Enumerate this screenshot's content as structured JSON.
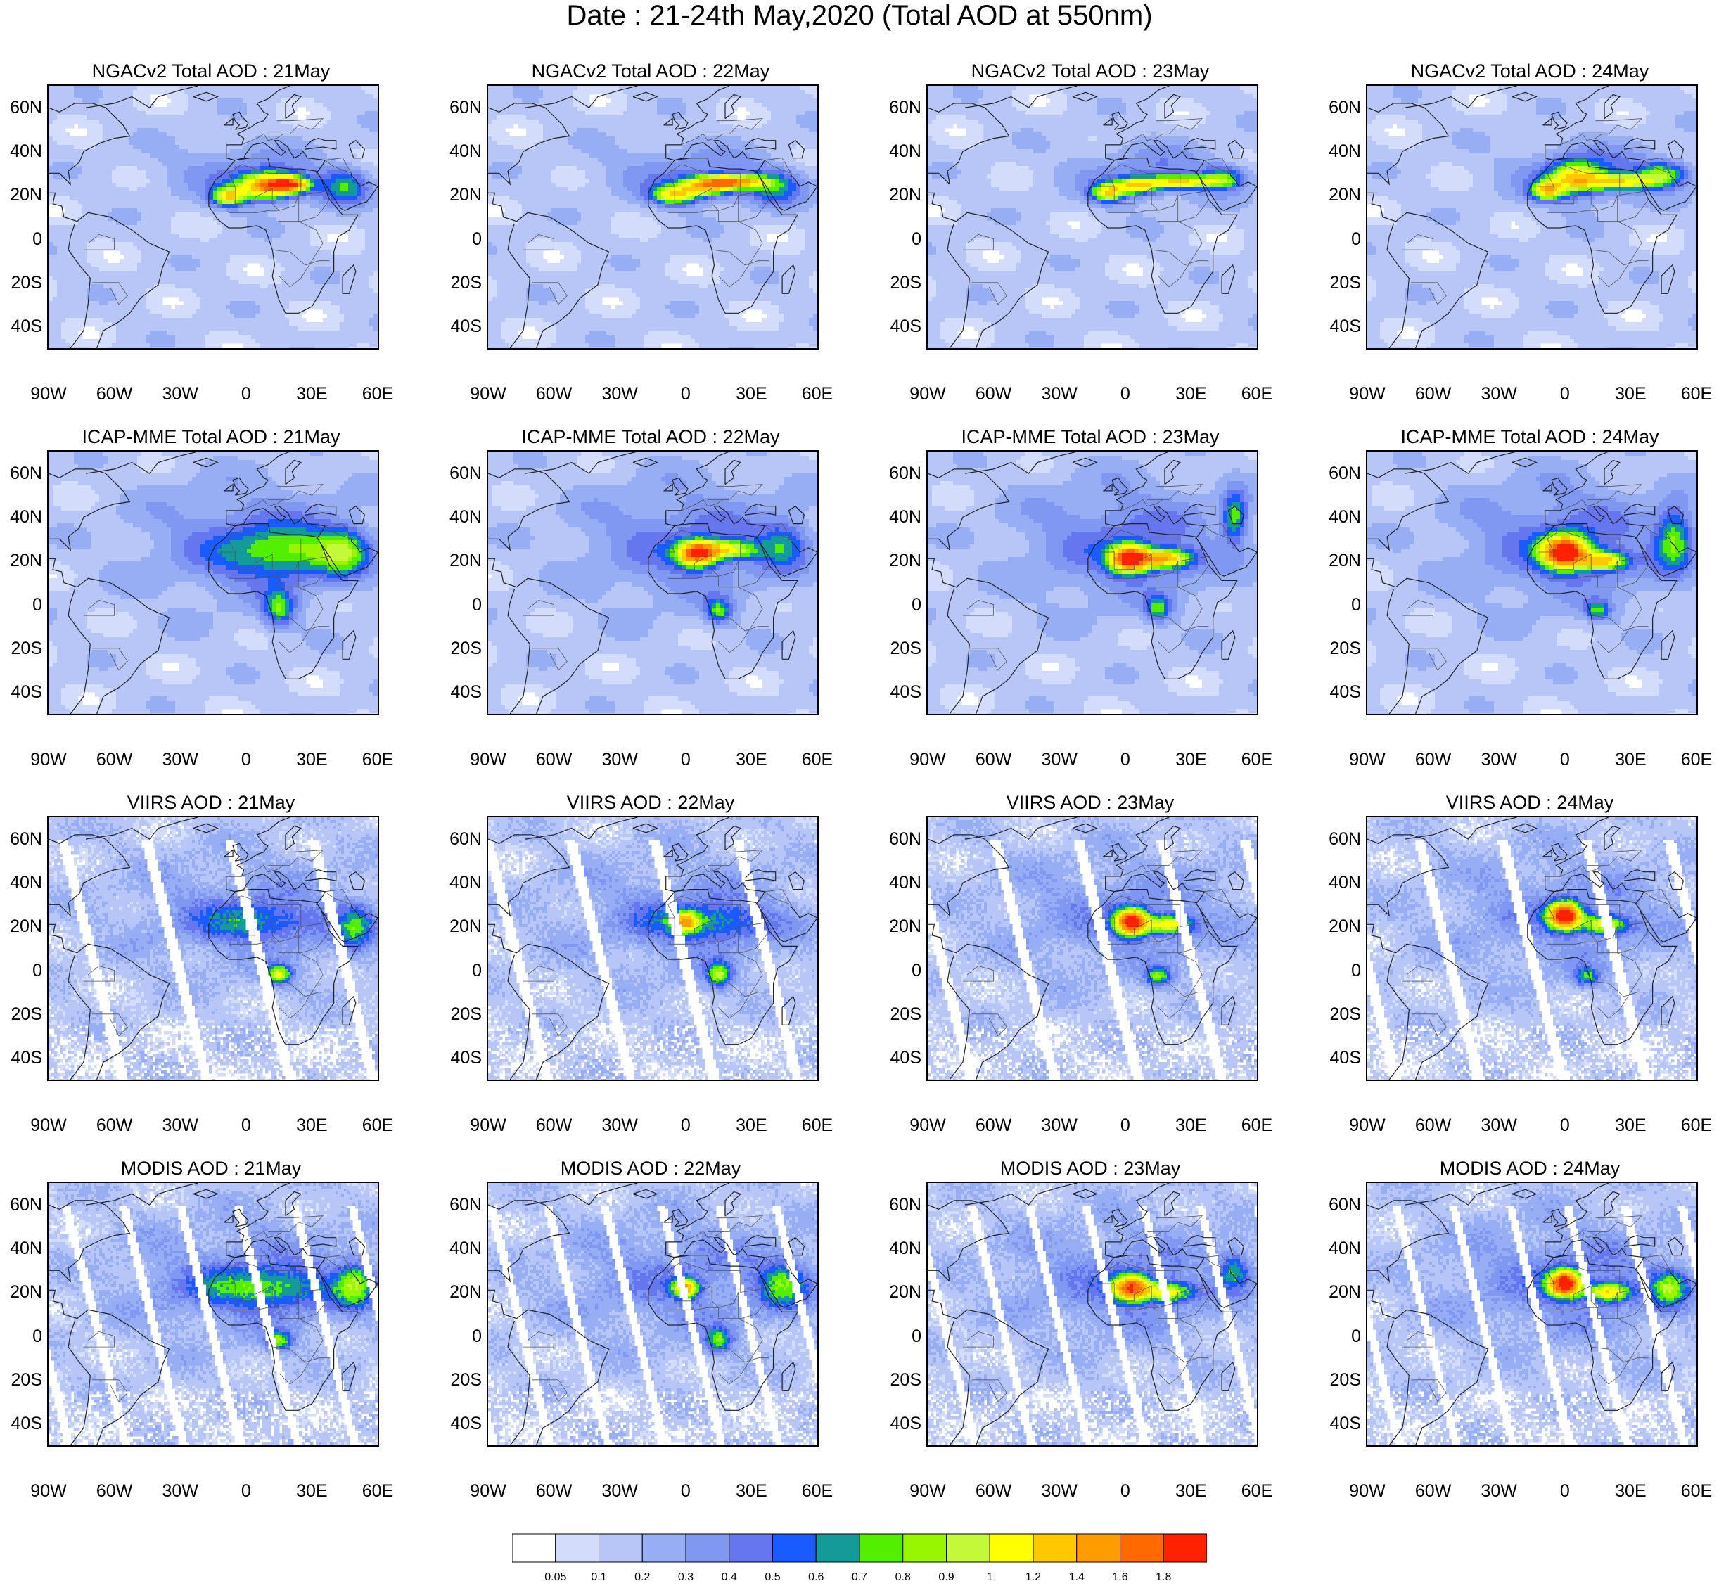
{
  "title": "Date : 21-24th May,2020 (Total AOD at 550nm)",
  "axes": {
    "lat_labels": [
      "60N",
      "40N",
      "20N",
      "0",
      "20S",
      "40S"
    ],
    "lat_values": [
      60,
      40,
      20,
      0,
      -20,
      -40
    ],
    "lon_labels": [
      "90W",
      "60W",
      "30W",
      "0",
      "30E",
      "60E"
    ],
    "lon_values": [
      -90,
      -60,
      -30,
      0,
      30,
      60
    ],
    "lon_range": [
      -90,
      60
    ],
    "lat_range": [
      -50,
      70
    ]
  },
  "colorbar": {
    "labels": [
      "0.05",
      "0.1",
      "0.2",
      "0.3",
      "0.4",
      "0.5",
      "0.6",
      "0.7",
      "0.8",
      "0.9",
      "1",
      "1.2",
      "1.4",
      "1.6",
      "1.8"
    ],
    "colors": [
      "#ffffff",
      "#d3dcfa",
      "#b7c6f7",
      "#97aef4",
      "#8098f2",
      "#6676ee",
      "#1a5bff",
      "#159a9a",
      "#52f000",
      "#98f700",
      "#c4f93a",
      "#ffff00",
      "#ffc800",
      "#ff9d00",
      "#ff6a00",
      "#ff2200"
    ]
  },
  "panels": [
    {
      "title": "NGACv2 Total AOD : 21May",
      "model": "ngac",
      "day": 21
    },
    {
      "title": "NGACv2 Total AOD : 22May",
      "model": "ngac",
      "day": 22
    },
    {
      "title": "NGACv2 Total AOD : 23May",
      "model": "ngac",
      "day": 23
    },
    {
      "title": "NGACv2 Total AOD : 24May",
      "model": "ngac",
      "day": 24
    },
    {
      "title": "ICAP-MME Total AOD : 21May",
      "model": "icap",
      "day": 21
    },
    {
      "title": "ICAP-MME Total AOD : 22May",
      "model": "icap",
      "day": 22
    },
    {
      "title": "ICAP-MME Total AOD : 23May",
      "model": "icap",
      "day": 23
    },
    {
      "title": "ICAP-MME Total AOD : 24May",
      "model": "icap",
      "day": 24
    },
    {
      "title": "VIIRS AOD : 21May",
      "model": "viirs",
      "day": 21
    },
    {
      "title": "VIIRS AOD : 22May",
      "model": "viirs",
      "day": 22
    },
    {
      "title": "VIIRS AOD : 23May",
      "model": "viirs",
      "day": 23
    },
    {
      "title": "VIIRS AOD : 24May",
      "model": "viirs",
      "day": 24
    },
    {
      "title": "MODIS AOD : 21May",
      "model": "modis",
      "day": 21
    },
    {
      "title": "MODIS AOD : 22May",
      "model": "modis",
      "day": 22
    },
    {
      "title": "MODIS AOD : 23May",
      "model": "modis",
      "day": 23
    },
    {
      "title": "MODIS AOD : 24May",
      "model": "modis",
      "day": 24
    }
  ]
}
